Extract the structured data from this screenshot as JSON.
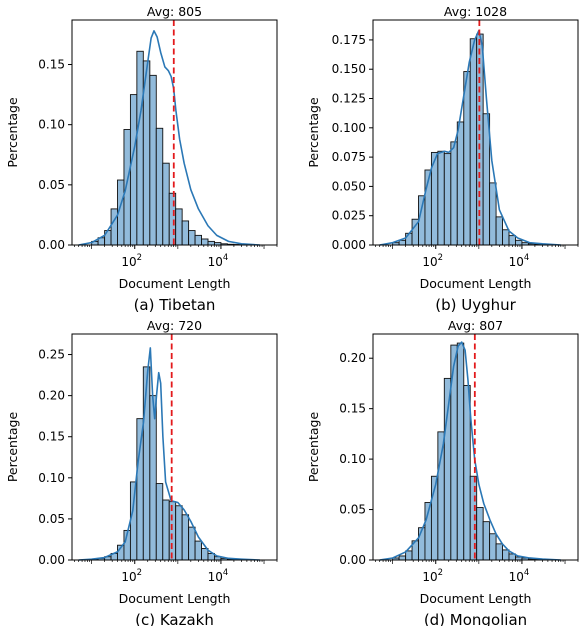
{
  "colors": {
    "bar_fill": "#92bbdb",
    "bar_edge": "#111111",
    "kde_line": "#2b78b6",
    "avg_line": "#e31a1c",
    "axis": "#000000"
  },
  "chart_data": [
    {
      "type": "bar",
      "title": "Avg: 805",
      "caption": "(a) Tibetan",
      "xlabel": "Document Length",
      "ylabel": "Percentage",
      "xscale": "log",
      "xlim": [
        3.5,
        200000
      ],
      "ylim": [
        0,
        0.187
      ],
      "yticks": [
        "0.00",
        "0.05",
        "0.10",
        "0.15"
      ],
      "ytick_values": [
        0,
        0.05,
        0.1,
        0.15
      ],
      "xticks": [
        {
          "base": "10",
          "exp": "2"
        },
        {
          "base": "10",
          "exp": "4"
        }
      ],
      "xtick_values": [
        100,
        10000
      ],
      "avg_value": 805,
      "bin_edges": [
        10,
        14.1,
        20,
        28.2,
        39.8,
        56.2,
        79.4,
        112,
        158,
        224,
        316,
        447,
        631,
        891,
        1259,
        1778,
        2512,
        3548,
        5012,
        7079,
        10000,
        14125,
        19953,
        28184,
        39811
      ],
      "values": [
        0.003,
        0.006,
        0.012,
        0.03,
        0.054,
        0.096,
        0.125,
        0.161,
        0.153,
        0.141,
        0.097,
        0.068,
        0.043,
        0.03,
        0.02,
        0.012,
        0.008,
        0.005,
        0.003,
        0.002,
        0.001,
        0.0006,
        0.0004,
        0.0002
      ],
      "kde_x": [
        5,
        10,
        20,
        40,
        60,
        100,
        140,
        200,
        240,
        280,
        330,
        400,
        500,
        600,
        700,
        800,
        900,
        1100,
        1400,
        2000,
        3000,
        5000,
        8000,
        15000,
        30000,
        80000
      ],
      "kde_y": [
        0,
        0.002,
        0.008,
        0.025,
        0.045,
        0.082,
        0.112,
        0.152,
        0.172,
        0.178,
        0.173,
        0.16,
        0.148,
        0.145,
        0.14,
        0.13,
        0.112,
        0.088,
        0.068,
        0.046,
        0.03,
        0.016,
        0.008,
        0.003,
        0.001,
        0
      ]
    },
    {
      "type": "bar",
      "title": "Avg: 1028",
      "caption": "(b) Uyghur",
      "xlabel": "Document Length",
      "ylabel": "Percentage",
      "xscale": "log",
      "xlim": [
        3.5,
        200000
      ],
      "ylim": [
        0,
        0.192
      ],
      "yticks": [
        "0.000",
        "0.025",
        "0.050",
        "0.075",
        "0.100",
        "0.125",
        "0.150",
        "0.175"
      ],
      "ytick_values": [
        0,
        0.025,
        0.05,
        0.075,
        0.1,
        0.125,
        0.15,
        0.175
      ],
      "xticks": [
        {
          "base": "10",
          "exp": "2"
        },
        {
          "base": "10",
          "exp": "4"
        }
      ],
      "xtick_values": [
        100,
        10000
      ],
      "avg_value": 1028,
      "bin_edges": [
        10,
        14.1,
        20,
        28.2,
        39.8,
        56.2,
        79.4,
        112,
        158,
        224,
        316,
        447,
        631,
        891,
        1259,
        1778,
        2512,
        3548,
        5012,
        7079,
        10000,
        14125,
        19953,
        28184,
        39811
      ],
      "values": [
        0.002,
        0.004,
        0.01,
        0.022,
        0.042,
        0.064,
        0.079,
        0.08,
        0.078,
        0.088,
        0.105,
        0.148,
        0.176,
        0.18,
        0.112,
        0.053,
        0.024,
        0.013,
        0.008,
        0.004,
        0.002,
        0.001,
        0.0006,
        0.0003
      ],
      "kde_x": [
        5,
        10,
        20,
        40,
        60,
        80,
        110,
        160,
        200,
        260,
        330,
        450,
        600,
        800,
        1000,
        1200,
        1500,
        2000,
        3000,
        5000,
        8000,
        15000,
        30000,
        80000
      ],
      "kde_y": [
        0,
        0.002,
        0.006,
        0.02,
        0.048,
        0.066,
        0.078,
        0.08,
        0.079,
        0.083,
        0.098,
        0.128,
        0.156,
        0.175,
        0.183,
        0.17,
        0.125,
        0.072,
        0.03,
        0.012,
        0.006,
        0.002,
        0.001,
        0
      ]
    },
    {
      "type": "bar",
      "title": "Avg: 720",
      "caption": "(c) Kazakh",
      "xlabel": "Document Length",
      "ylabel": "Percentage",
      "xscale": "log",
      "xlim": [
        3.5,
        200000
      ],
      "ylim": [
        0,
        0.275
      ],
      "yticks": [
        "0.00",
        "0.05",
        "0.10",
        "0.15",
        "0.20",
        "0.25"
      ],
      "ytick_values": [
        0,
        0.05,
        0.1,
        0.15,
        0.2,
        0.25
      ],
      "xticks": [
        {
          "base": "10",
          "exp": "2"
        },
        {
          "base": "10",
          "exp": "4"
        }
      ],
      "xtick_values": [
        100,
        10000
      ],
      "avg_value": 720,
      "bin_edges": [
        10,
        14.1,
        20,
        28.2,
        39.8,
        56.2,
        79.4,
        112,
        158,
        224,
        316,
        447,
        631,
        891,
        1259,
        1778,
        2512,
        3548,
        5012,
        7079,
        10000,
        14125,
        19953,
        28184,
        39811
      ],
      "values": [
        0.001,
        0.002,
        0.004,
        0.008,
        0.018,
        0.036,
        0.095,
        0.172,
        0.235,
        0.2,
        0.093,
        0.073,
        0.071,
        0.066,
        0.055,
        0.04,
        0.023,
        0.014,
        0.008,
        0.004,
        0.002,
        0.001,
        0.0006,
        0.0003
      ],
      "kde_x": [
        5,
        10,
        20,
        40,
        60,
        90,
        120,
        160,
        200,
        230,
        260,
        290,
        320,
        360,
        400,
        450,
        520,
        700,
        1000,
        1400,
        2000,
        3000,
        5000,
        8000,
        15000,
        30000,
        80000
      ],
      "kde_y": [
        0,
        0.001,
        0.003,
        0.01,
        0.022,
        0.06,
        0.12,
        0.168,
        0.23,
        0.258,
        0.2,
        0.172,
        0.2,
        0.228,
        0.215,
        0.15,
        0.095,
        0.072,
        0.07,
        0.061,
        0.047,
        0.028,
        0.012,
        0.005,
        0.002,
        0.001,
        0
      ]
    },
    {
      "type": "bar",
      "title": "Avg: 807",
      "caption": "(d) Mongolian",
      "xlabel": "Document Length",
      "ylabel": "Percentage",
      "xscale": "log",
      "xlim": [
        3.5,
        200000
      ],
      "ylim": [
        0,
        0.224
      ],
      "yticks": [
        "0.00",
        "0.05",
        "0.10",
        "0.15",
        "0.20"
      ],
      "ytick_values": [
        0,
        0.05,
        0.1,
        0.15,
        0.2
      ],
      "xticks": [
        {
          "base": "10",
          "exp": "2"
        },
        {
          "base": "10",
          "exp": "4"
        }
      ],
      "xtick_values": [
        100,
        10000
      ],
      "avg_value": 807,
      "bin_edges": [
        10,
        14.1,
        20,
        28.2,
        39.8,
        56.2,
        79.4,
        112,
        158,
        224,
        316,
        447,
        631,
        891,
        1259,
        1778,
        2512,
        3548,
        5012,
        7079,
        10000,
        14125,
        19953,
        28184,
        39811
      ],
      "values": [
        0.002,
        0.004,
        0.009,
        0.019,
        0.032,
        0.057,
        0.083,
        0.127,
        0.18,
        0.213,
        0.215,
        0.173,
        0.083,
        0.052,
        0.038,
        0.026,
        0.016,
        0.01,
        0.006,
        0.003,
        0.002,
        0.001,
        0.0006,
        0.0003
      ],
      "kde_x": [
        5,
        10,
        20,
        40,
        60,
        100,
        150,
        200,
        260,
        330,
        400,
        480,
        560,
        650,
        800,
        1000,
        1300,
        1800,
        2500,
        3500,
        5000,
        8000,
        15000,
        30000,
        80000
      ],
      "kde_y": [
        0,
        0.002,
        0.008,
        0.022,
        0.04,
        0.075,
        0.115,
        0.155,
        0.192,
        0.212,
        0.216,
        0.208,
        0.178,
        0.14,
        0.1,
        0.075,
        0.056,
        0.04,
        0.026,
        0.016,
        0.009,
        0.004,
        0.002,
        0.001,
        0
      ]
    }
  ]
}
